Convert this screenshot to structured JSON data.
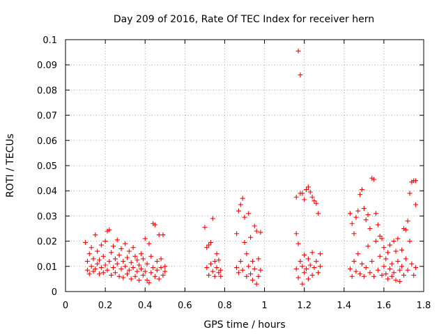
{
  "chart_data": {
    "type": "scatter",
    "title": "Day 209 of 2016, Rate Of TEC Index for receiver hern",
    "xlabel": "GPS time / hours",
    "ylabel": "ROTI / TECUs",
    "xlim": [
      0,
      1.8
    ],
    "ylim": [
      0,
      0.1
    ],
    "x_ticks": [
      0,
      0.2,
      0.4,
      0.6,
      0.8,
      1,
      1.2,
      1.4,
      1.6,
      1.8
    ],
    "x_tick_labels": [
      "0",
      "0.2",
      "0.4",
      "0.6",
      "0.8",
      "1",
      "1.2",
      "1.4",
      "1.6",
      "1.8"
    ],
    "y_ticks": [
      0,
      0.01,
      0.02,
      0.03,
      0.04,
      0.05,
      0.06,
      0.07,
      0.08,
      0.09,
      0.1
    ],
    "y_tick_labels": [
      "0",
      "0.01",
      "0.02",
      "0.03",
      "0.04",
      "0.05",
      "0.06",
      "0.07",
      "0.08",
      "0.09",
      "0.1"
    ],
    "grid": true,
    "marker": "plus",
    "color": "#ff0000",
    "series": [
      {
        "points": [
          [
            0.1,
            0.0195
          ],
          [
            0.11,
            0.0085
          ],
          [
            0.11,
            0.012
          ],
          [
            0.12,
            0.007
          ],
          [
            0.12,
            0.015
          ],
          [
            0.13,
            0.01
          ],
          [
            0.13,
            0.0175
          ],
          [
            0.14,
            0.008
          ],
          [
            0.14,
            0.013
          ],
          [
            0.15,
            0.009
          ],
          [
            0.15,
            0.0225
          ],
          [
            0.16,
            0.011
          ],
          [
            0.16,
            0.016
          ],
          [
            0.17,
            0.007
          ],
          [
            0.17,
            0.0125
          ],
          [
            0.18,
            0.0095
          ],
          [
            0.18,
            0.0185
          ],
          [
            0.19,
            0.0075
          ],
          [
            0.19,
            0.014
          ],
          [
            0.2,
            0.0105
          ],
          [
            0.2,
            0.02
          ],
          [
            0.21,
            0.0085
          ],
          [
            0.21,
            0.024
          ],
          [
            0.22,
            0.012
          ],
          [
            0.22,
            0.0245
          ],
          [
            0.23,
            0.0065
          ],
          [
            0.23,
            0.0155
          ],
          [
            0.24,
            0.0095
          ],
          [
            0.24,
            0.018
          ],
          [
            0.25,
            0.0075
          ],
          [
            0.25,
            0.013
          ],
          [
            0.26,
            0.011
          ],
          [
            0.26,
            0.0205
          ],
          [
            0.27,
            0.006
          ],
          [
            0.27,
            0.0145
          ],
          [
            0.28,
            0.009
          ],
          [
            0.28,
            0.017
          ],
          [
            0.29,
            0.0055
          ],
          [
            0.29,
            0.012
          ],
          [
            0.3,
            0.01
          ],
          [
            0.3,
            0.019
          ],
          [
            0.31,
            0.007
          ],
          [
            0.31,
            0.0135
          ],
          [
            0.32,
            0.0085
          ],
          [
            0.32,
            0.016
          ],
          [
            0.33,
            0.005
          ],
          [
            0.33,
            0.0115
          ],
          [
            0.34,
            0.0095
          ],
          [
            0.34,
            0.0175
          ],
          [
            0.35,
            0.006
          ],
          [
            0.35,
            0.014
          ],
          [
            0.36,
            0.008
          ],
          [
            0.36,
            0.0125
          ],
          [
            0.37,
            0.0045
          ],
          [
            0.37,
            0.0105
          ],
          [
            0.38,
            0.009
          ],
          [
            0.38,
            0.015
          ],
          [
            0.39,
            0.0065
          ],
          [
            0.39,
            0.013
          ],
          [
            0.4,
            0.008
          ],
          [
            0.4,
            0.021
          ],
          [
            0.41,
            0.0045
          ],
          [
            0.41,
            0.011
          ],
          [
            0.42,
            0.0035
          ],
          [
            0.42,
            0.019
          ],
          [
            0.43,
            0.0075
          ],
          [
            0.43,
            0.014
          ],
          [
            0.44,
            0.0095
          ],
          [
            0.44,
            0.027
          ],
          [
            0.45,
            0.006
          ],
          [
            0.45,
            0.0265
          ],
          [
            0.46,
            0.0085
          ],
          [
            0.46,
            0.012
          ],
          [
            0.47,
            0.005
          ],
          [
            0.47,
            0.0225
          ],
          [
            0.48,
            0.0095
          ],
          [
            0.48,
            0.013
          ],
          [
            0.49,
            0.0065
          ],
          [
            0.49,
            0.0225
          ],
          [
            0.5,
            0.008
          ],
          [
            0.5,
            0.01
          ],
          [
            0.7,
            0.0255
          ],
          [
            0.71,
            0.0175
          ],
          [
            0.71,
            0.0095
          ],
          [
            0.72,
            0.0185
          ],
          [
            0.72,
            0.0065
          ],
          [
            0.73,
            0.011
          ],
          [
            0.73,
            0.0195
          ],
          [
            0.74,
            0.008
          ],
          [
            0.74,
            0.029
          ],
          [
            0.75,
            0.012
          ],
          [
            0.75,
            0.006
          ],
          [
            0.76,
            0.015
          ],
          [
            0.76,
            0.0095
          ],
          [
            0.77,
            0.0075
          ],
          [
            0.77,
            0.0125
          ],
          [
            0.78,
            0.0085
          ],
          [
            0.78,
            0.006
          ],
          [
            0.86,
            0.023
          ],
          [
            0.86,
            0.0095
          ],
          [
            0.87,
            0.032
          ],
          [
            0.87,
            0.0075
          ],
          [
            0.88,
            0.0345
          ],
          [
            0.88,
            0.012
          ],
          [
            0.89,
            0.037
          ],
          [
            0.89,
            0.0085
          ],
          [
            0.9,
            0.0295
          ],
          [
            0.9,
            0.0195
          ],
          [
            0.91,
            0.006
          ],
          [
            0.91,
            0.015
          ],
          [
            0.92,
            0.031
          ],
          [
            0.92,
            0.01
          ],
          [
            0.93,
            0.0215
          ],
          [
            0.93,
            0.007
          ],
          [
            0.94,
            0.012
          ],
          [
            0.94,
            0.0045
          ],
          [
            0.95,
            0.026
          ],
          [
            0.95,
            0.009
          ],
          [
            0.96,
            0.024
          ],
          [
            0.96,
            0.003
          ],
          [
            0.97,
            0.013
          ],
          [
            0.97,
            0.006
          ],
          [
            0.98,
            0.0235
          ],
          [
            0.98,
            0.0085
          ],
          [
            1.16,
            0.0375
          ],
          [
            1.16,
            0.023
          ],
          [
            1.16,
            0.009
          ],
          [
            1.17,
            0.0955
          ],
          [
            1.17,
            0.019
          ],
          [
            1.17,
            0.0055
          ],
          [
            1.18,
            0.086
          ],
          [
            1.18,
            0.039
          ],
          [
            1.18,
            0.012
          ],
          [
            1.19,
            0.003
          ],
          [
            1.19,
            0.039
          ],
          [
            1.19,
            0.01
          ],
          [
            1.2,
            0.0365
          ],
          [
            1.2,
            0.0075
          ],
          [
            1.2,
            0.0145
          ],
          [
            1.21,
            0.0405
          ],
          [
            1.21,
            0.009
          ],
          [
            1.22,
            0.0415
          ],
          [
            1.22,
            0.005
          ],
          [
            1.22,
            0.013
          ],
          [
            1.23,
            0.0395
          ],
          [
            1.23,
            0.0105
          ],
          [
            1.24,
            0.0375
          ],
          [
            1.24,
            0.0065
          ],
          [
            1.24,
            0.0155
          ],
          [
            1.25,
            0.036
          ],
          [
            1.25,
            0.0095
          ],
          [
            1.26,
            0.035
          ],
          [
            1.26,
            0.012
          ],
          [
            1.27,
            0.031
          ],
          [
            1.27,
            0.0075
          ],
          [
            1.28,
            0.015
          ],
          [
            1.28,
            0.01
          ],
          [
            1.43,
            0.031
          ],
          [
            1.43,
            0.009
          ],
          [
            1.44,
            0.027
          ],
          [
            1.44,
            0.006
          ],
          [
            1.45,
            0.023
          ],
          [
            1.45,
            0.012
          ],
          [
            1.46,
            0.0295
          ],
          [
            1.46,
            0.008
          ],
          [
            1.47,
            0.032
          ],
          [
            1.47,
            0.015
          ],
          [
            1.48,
            0.0385
          ],
          [
            1.48,
            0.007
          ],
          [
            1.49,
            0.0405
          ],
          [
            1.49,
            0.011
          ],
          [
            1.5,
            0.033
          ],
          [
            1.5,
            0.006
          ],
          [
            1.51,
            0.0285
          ],
          [
            1.51,
            0.0095
          ],
          [
            1.52,
            0.0305
          ],
          [
            1.52,
            0.018
          ],
          [
            1.53,
            0.025
          ],
          [
            1.53,
            0.0075
          ],
          [
            1.54,
            0.045
          ],
          [
            1.54,
            0.012
          ],
          [
            1.55,
            0.0445
          ],
          [
            1.55,
            0.006
          ],
          [
            1.56,
            0.031
          ],
          [
            1.56,
            0.02
          ],
          [
            1.57,
            0.0265
          ],
          [
            1.57,
            0.0085
          ],
          [
            1.58,
            0.022
          ],
          [
            1.58,
            0.014
          ],
          [
            1.59,
            0.021
          ],
          [
            1.59,
            0.0065
          ],
          [
            1.6,
            0.01
          ],
          [
            1.6,
            0.0175
          ],
          [
            1.61,
            0.007
          ],
          [
            1.61,
            0.013
          ],
          [
            1.62,
            0.0155
          ],
          [
            1.62,
            0.005
          ],
          [
            1.63,
            0.009
          ],
          [
            1.63,
            0.0185
          ],
          [
            1.64,
            0.006
          ],
          [
            1.64,
            0.011
          ],
          [
            1.65,
            0.02
          ],
          [
            1.65,
            0.0075
          ],
          [
            1.66,
            0.016
          ],
          [
            1.66,
            0.0045
          ],
          [
            1.67,
            0.012
          ],
          [
            1.67,
            0.021
          ],
          [
            1.68,
            0.0085
          ],
          [
            1.68,
            0.004
          ],
          [
            1.69,
            0.0165
          ],
          [
            1.69,
            0.01
          ],
          [
            1.7,
            0.025
          ],
          [
            1.7,
            0.0065
          ],
          [
            1.71,
            0.0245
          ],
          [
            1.71,
            0.013
          ],
          [
            1.72,
            0.028
          ],
          [
            1.72,
            0.0085
          ],
          [
            1.73,
            0.039
          ],
          [
            1.73,
            0.02
          ],
          [
            1.74,
            0.0435
          ],
          [
            1.74,
            0.011
          ],
          [
            1.75,
            0.044
          ],
          [
            1.75,
            0.0065
          ],
          [
            1.76,
            0.0345
          ],
          [
            1.76,
            0.0095
          ],
          [
            1.76,
            0.044
          ]
        ]
      }
    ]
  }
}
